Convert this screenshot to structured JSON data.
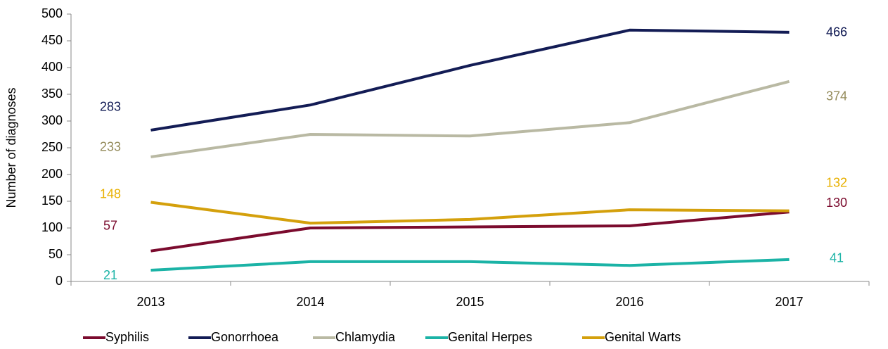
{
  "chart_data": {
    "type": "line",
    "y_label": "Number of diagnoses",
    "categories": [
      "2013",
      "2014",
      "2015",
      "2016",
      "2017"
    ],
    "series": [
      {
        "name": "Syphilis",
        "color": "#7b0b2e",
        "values": [
          57,
          100,
          102,
          104,
          130
        ]
      },
      {
        "name": "Gonorrhoea",
        "color": "#131c55",
        "values": [
          283,
          330,
          404,
          470,
          466
        ]
      },
      {
        "name": "Chlamydia",
        "color": "#b9b9a3",
        "values": [
          233,
          275,
          272,
          297,
          374
        ]
      },
      {
        "name": "Genital Herpes",
        "color": "#1bb3a6",
        "values": [
          21,
          37,
          37,
          30,
          41
        ]
      },
      {
        "name": "Genital Warts",
        "color": "#d4a00c",
        "values": [
          148,
          109,
          116,
          134,
          132
        ]
      }
    ],
    "ylim": [
      0,
      500
    ],
    "yticks": [
      0,
      50,
      100,
      150,
      200,
      250,
      300,
      350,
      400,
      450,
      500
    ],
    "grid": false,
    "legend": "bottom"
  }
}
